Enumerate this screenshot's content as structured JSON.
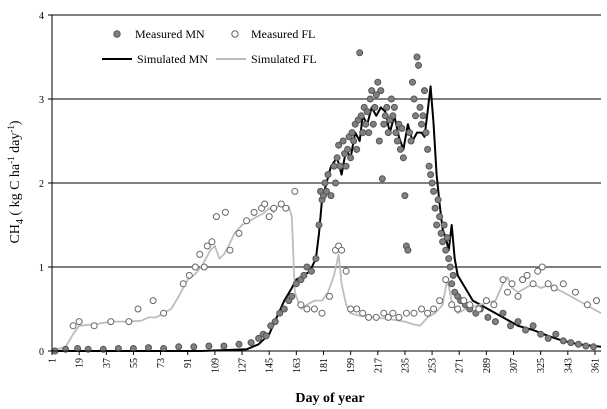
{
  "chart_data": {
    "type": "line",
    "xlabel": "Day of year",
    "ylabel_main": "CH",
    "ylabel_sub": "4",
    "ylabel_rest": " ( kg C ha",
    "ylabel_sup1": "-1",
    "ylabel_mid": " day",
    "ylabel_sup2": "-1",
    "ylabel_end": ")",
    "xlim": [
      1,
      365
    ],
    "ylim": [
      0,
      4
    ],
    "yticks": [
      0,
      1,
      2,
      3,
      4
    ],
    "xticks": [
      1,
      19,
      37,
      55,
      73,
      91,
      109,
      127,
      145,
      163,
      181,
      199,
      217,
      235,
      253,
      271,
      289,
      307,
      325,
      343,
      361
    ],
    "grid": "horizontal",
    "legend_placement": "top-left",
    "series": [
      {
        "name": "Simulated MN",
        "kind": "line",
        "color": "#000000",
        "x": [
          1,
          60,
          100,
          130,
          138,
          145,
          150,
          155,
          160,
          163,
          168,
          172,
          176,
          178,
          180,
          183,
          186,
          190,
          193,
          196,
          199,
          202,
          205,
          207,
          210,
          213,
          216,
          219,
          222,
          225,
          228,
          231,
          234,
          237,
          240,
          243,
          246,
          248,
          250,
          252,
          254,
          256,
          258,
          260,
          262,
          264,
          266,
          268,
          270,
          275,
          280,
          285,
          290,
          300,
          310,
          320,
          330,
          340,
          350,
          365
        ],
        "y": [
          0.0,
          0.0,
          0.0,
          0.02,
          0.08,
          0.2,
          0.4,
          0.6,
          0.75,
          0.85,
          0.9,
          0.95,
          1.1,
          1.4,
          1.8,
          2.0,
          2.2,
          2.3,
          2.1,
          2.4,
          2.3,
          2.6,
          2.5,
          2.8,
          2.7,
          2.9,
          2.8,
          2.9,
          2.85,
          2.6,
          2.8,
          2.55,
          2.4,
          2.7,
          2.5,
          2.6,
          2.6,
          2.55,
          2.85,
          3.15,
          2.7,
          2.1,
          1.75,
          1.45,
          1.35,
          1.2,
          1.5,
          1.1,
          0.9,
          0.75,
          0.6,
          0.55,
          0.5,
          0.4,
          0.3,
          0.25,
          0.18,
          0.12,
          0.08,
          0.05
        ]
      },
      {
        "name": "Simulated FL",
        "kind": "line",
        "color": "#bdbdbd",
        "x": [
          1,
          10,
          15,
          19,
          30,
          40,
          50,
          60,
          65,
          70,
          75,
          80,
          85,
          91,
          95,
          100,
          103,
          106,
          109,
          112,
          115,
          118,
          122,
          127,
          132,
          137,
          142,
          145,
          148,
          152,
          155,
          158,
          160,
          162,
          164,
          166,
          170,
          175,
          180,
          184,
          188,
          191,
          193,
          196,
          199,
          205,
          215,
          225,
          235,
          240,
          245,
          250,
          255,
          260,
          263,
          266,
          268,
          270,
          275,
          285,
          295,
          300,
          303,
          306,
          310,
          315,
          320,
          325,
          330,
          340,
          350,
          360,
          365
        ],
        "y": [
          0.0,
          0.05,
          0.2,
          0.3,
          0.32,
          0.35,
          0.35,
          0.36,
          0.4,
          0.4,
          0.45,
          0.5,
          0.65,
          0.85,
          0.9,
          1.0,
          1.1,
          1.2,
          1.25,
          1.1,
          1.15,
          1.25,
          1.4,
          1.5,
          1.55,
          1.6,
          1.65,
          1.7,
          1.65,
          1.75,
          1.7,
          1.72,
          1.6,
          0.7,
          0.6,
          0.5,
          0.55,
          0.6,
          0.6,
          0.7,
          0.9,
          1.15,
          0.8,
          0.55,
          0.45,
          0.42,
          0.4,
          0.38,
          0.35,
          0.32,
          0.3,
          0.4,
          0.45,
          0.55,
          0.85,
          0.6,
          0.5,
          0.45,
          0.5,
          0.55,
          0.6,
          0.8,
          0.88,
          0.75,
          0.7,
          0.75,
          0.8,
          0.75,
          0.78,
          0.7,
          0.6,
          0.5,
          0.45
        ]
      },
      {
        "name": "Measured MN",
        "kind": "scatter",
        "marker": "filled",
        "color": "#808080",
        "x": [
          3,
          10,
          18,
          25,
          35,
          45,
          55,
          65,
          75,
          85,
          95,
          105,
          115,
          125,
          133,
          138,
          141,
          143,
          146,
          149,
          152,
          155,
          158,
          160,
          163,
          166,
          168,
          170,
          173,
          176,
          178,
          179,
          180,
          181,
          182,
          183,
          184,
          186,
          188,
          189,
          190,
          191,
          192,
          194,
          195,
          196,
          197,
          198,
          199,
          200,
          201,
          202,
          203,
          204,
          205,
          206,
          207,
          208,
          209,
          210,
          211,
          212,
          213,
          214,
          215,
          216,
          217,
          218,
          219,
          220,
          221,
          222,
          223,
          224,
          225,
          226,
          227,
          228,
          229,
          230,
          231,
          232,
          233,
          234,
          235,
          236,
          237,
          238,
          239,
          240,
          241,
          242,
          243,
          244,
          245,
          246,
          247,
          248,
          249,
          250,
          251,
          252,
          253,
          254,
          255,
          256,
          257,
          258,
          259,
          260,
          261,
          262,
          263,
          264,
          265,
          266,
          267,
          268,
          270,
          272,
          275,
          278,
          282,
          285,
          290,
          295,
          300,
          305,
          310,
          315,
          320,
          325,
          330,
          335,
          340,
          345,
          350,
          355,
          360
        ],
        "y": [
          0.0,
          0.02,
          0.03,
          0.02,
          0.02,
          0.03,
          0.03,
          0.04,
          0.03,
          0.05,
          0.05,
          0.06,
          0.06,
          0.08,
          0.1,
          0.15,
          0.2,
          0.18,
          0.3,
          0.35,
          0.45,
          0.5,
          0.6,
          0.65,
          0.8,
          0.85,
          0.9,
          1.0,
          0.95,
          1.1,
          1.5,
          1.9,
          1.8,
          1.85,
          2.0,
          1.9,
          2.1,
          1.85,
          2.2,
          2.0,
          2.3,
          2.45,
          2.2,
          2.5,
          2.35,
          2.2,
          2.4,
          2.55,
          2.3,
          2.6,
          2.5,
          2.7,
          2.4,
          2.75,
          3.55,
          2.8,
          2.6,
          2.9,
          2.7,
          2.85,
          2.6,
          3.0,
          3.1,
          2.7,
          2.9,
          3.05,
          3.2,
          2.5,
          3.1,
          2.05,
          2.7,
          2.8,
          2.9,
          2.6,
          2.75,
          3.0,
          2.8,
          2.9,
          2.6,
          2.5,
          2.7,
          2.4,
          2.65,
          2.3,
          1.85,
          1.25,
          1.2,
          2.6,
          2.5,
          3.2,
          3.0,
          2.8,
          3.5,
          3.4,
          2.9,
          2.7,
          2.8,
          3.1,
          2.6,
          2.4,
          2.2,
          2.1,
          2.0,
          1.9,
          1.7,
          1.5,
          1.8,
          1.6,
          1.4,
          1.3,
          1.5,
          1.2,
          1.35,
          1.1,
          1.0,
          0.8,
          0.9,
          0.7,
          0.65,
          0.6,
          0.55,
          0.5,
          0.45,
          0.5,
          0.4,
          0.35,
          0.45,
          0.3,
          0.35,
          0.25,
          0.3,
          0.2,
          0.15,
          0.2,
          0.12,
          0.1,
          0.08,
          0.06,
          0.05
        ]
      },
      {
        "name": "Measured FL",
        "kind": "scatter",
        "marker": "hollow",
        "color": "#808080",
        "x": [
          15,
          19,
          29,
          40,
          52,
          58,
          68,
          75,
          88,
          92,
          96,
          99,
          102,
          104,
          107,
          110,
          116,
          119,
          125,
          130,
          135,
          140,
          142,
          145,
          148,
          153,
          156,
          162,
          166,
          170,
          175,
          180,
          185,
          189,
          191,
          193,
          196,
          199,
          203,
          207,
          211,
          216,
          221,
          224,
          227,
          231,
          236,
          241,
          246,
          250,
          254,
          258,
          262,
          266,
          270,
          274,
          278,
          284,
          289,
          294,
          300,
          303,
          306,
          310,
          313,
          316,
          320,
          323,
          326,
          330,
          334,
          340,
          348,
          356,
          362
        ],
        "y": [
          0.3,
          0.35,
          0.3,
          0.35,
          0.35,
          0.5,
          0.6,
          0.45,
          0.8,
          0.9,
          1.0,
          1.15,
          1.0,
          1.25,
          1.3,
          1.6,
          1.65,
          1.2,
          1.4,
          1.55,
          1.65,
          1.7,
          1.75,
          1.6,
          1.7,
          1.75,
          1.7,
          1.9,
          0.55,
          0.5,
          0.5,
          0.45,
          0.65,
          1.2,
          1.25,
          1.2,
          0.95,
          0.5,
          0.5,
          0.45,
          0.4,
          0.4,
          0.45,
          0.4,
          0.45,
          0.4,
          0.45,
          0.45,
          0.5,
          0.45,
          0.5,
          0.6,
          0.85,
          0.55,
          0.5,
          0.6,
          0.55,
          0.5,
          0.6,
          0.55,
          0.85,
          0.7,
          0.8,
          0.65,
          0.85,
          0.9,
          0.8,
          0.95,
          1.0,
          0.8,
          0.75,
          0.8,
          0.7,
          0.55,
          0.6
        ]
      }
    ]
  }
}
